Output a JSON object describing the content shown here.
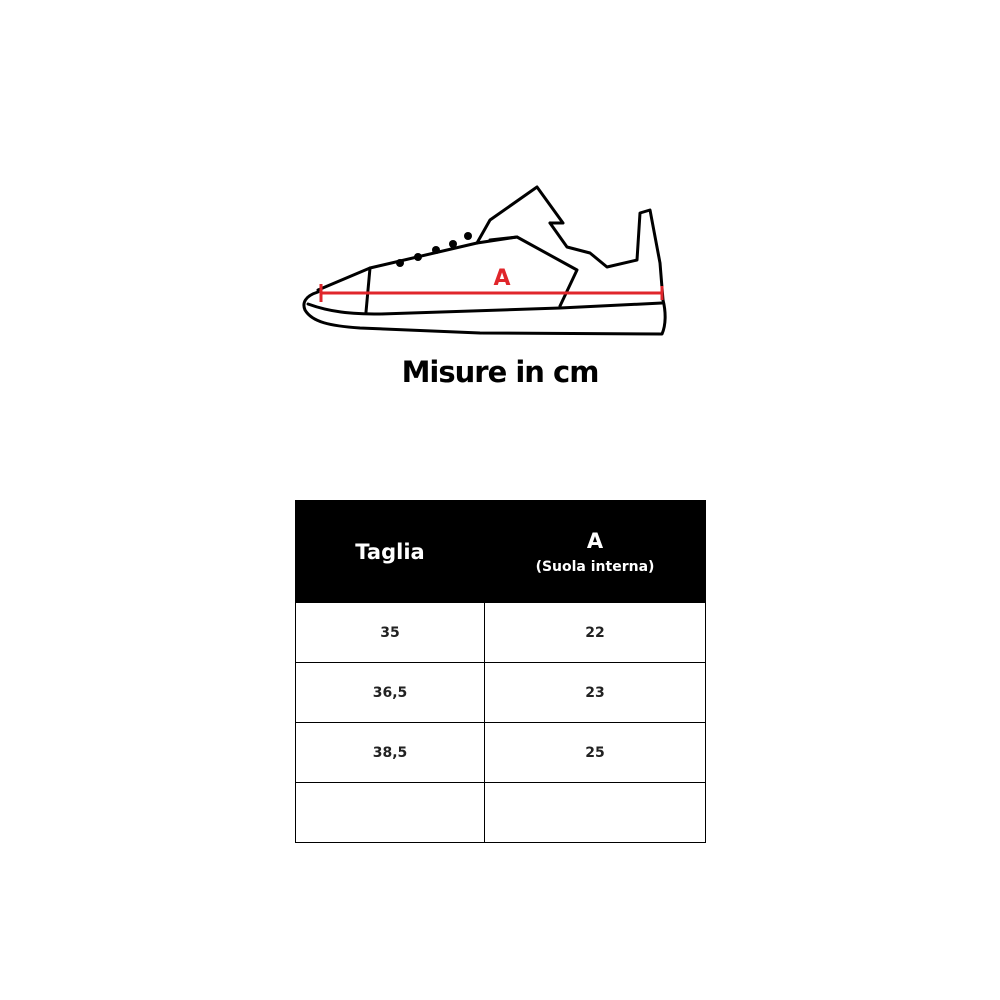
{
  "diagram": {
    "label": "A",
    "measure_color": "#e0262b",
    "line_color": "#000000"
  },
  "title": "Misure in cm",
  "table": {
    "headers": [
      {
        "main": "Taglia",
        "sub": ""
      },
      {
        "main": "A",
        "sub": "(Suola interna)"
      }
    ],
    "rows": [
      [
        "35",
        "22"
      ],
      [
        "36,5",
        "23"
      ],
      [
        "38,5",
        "25"
      ],
      [
        "",
        ""
      ]
    ]
  }
}
